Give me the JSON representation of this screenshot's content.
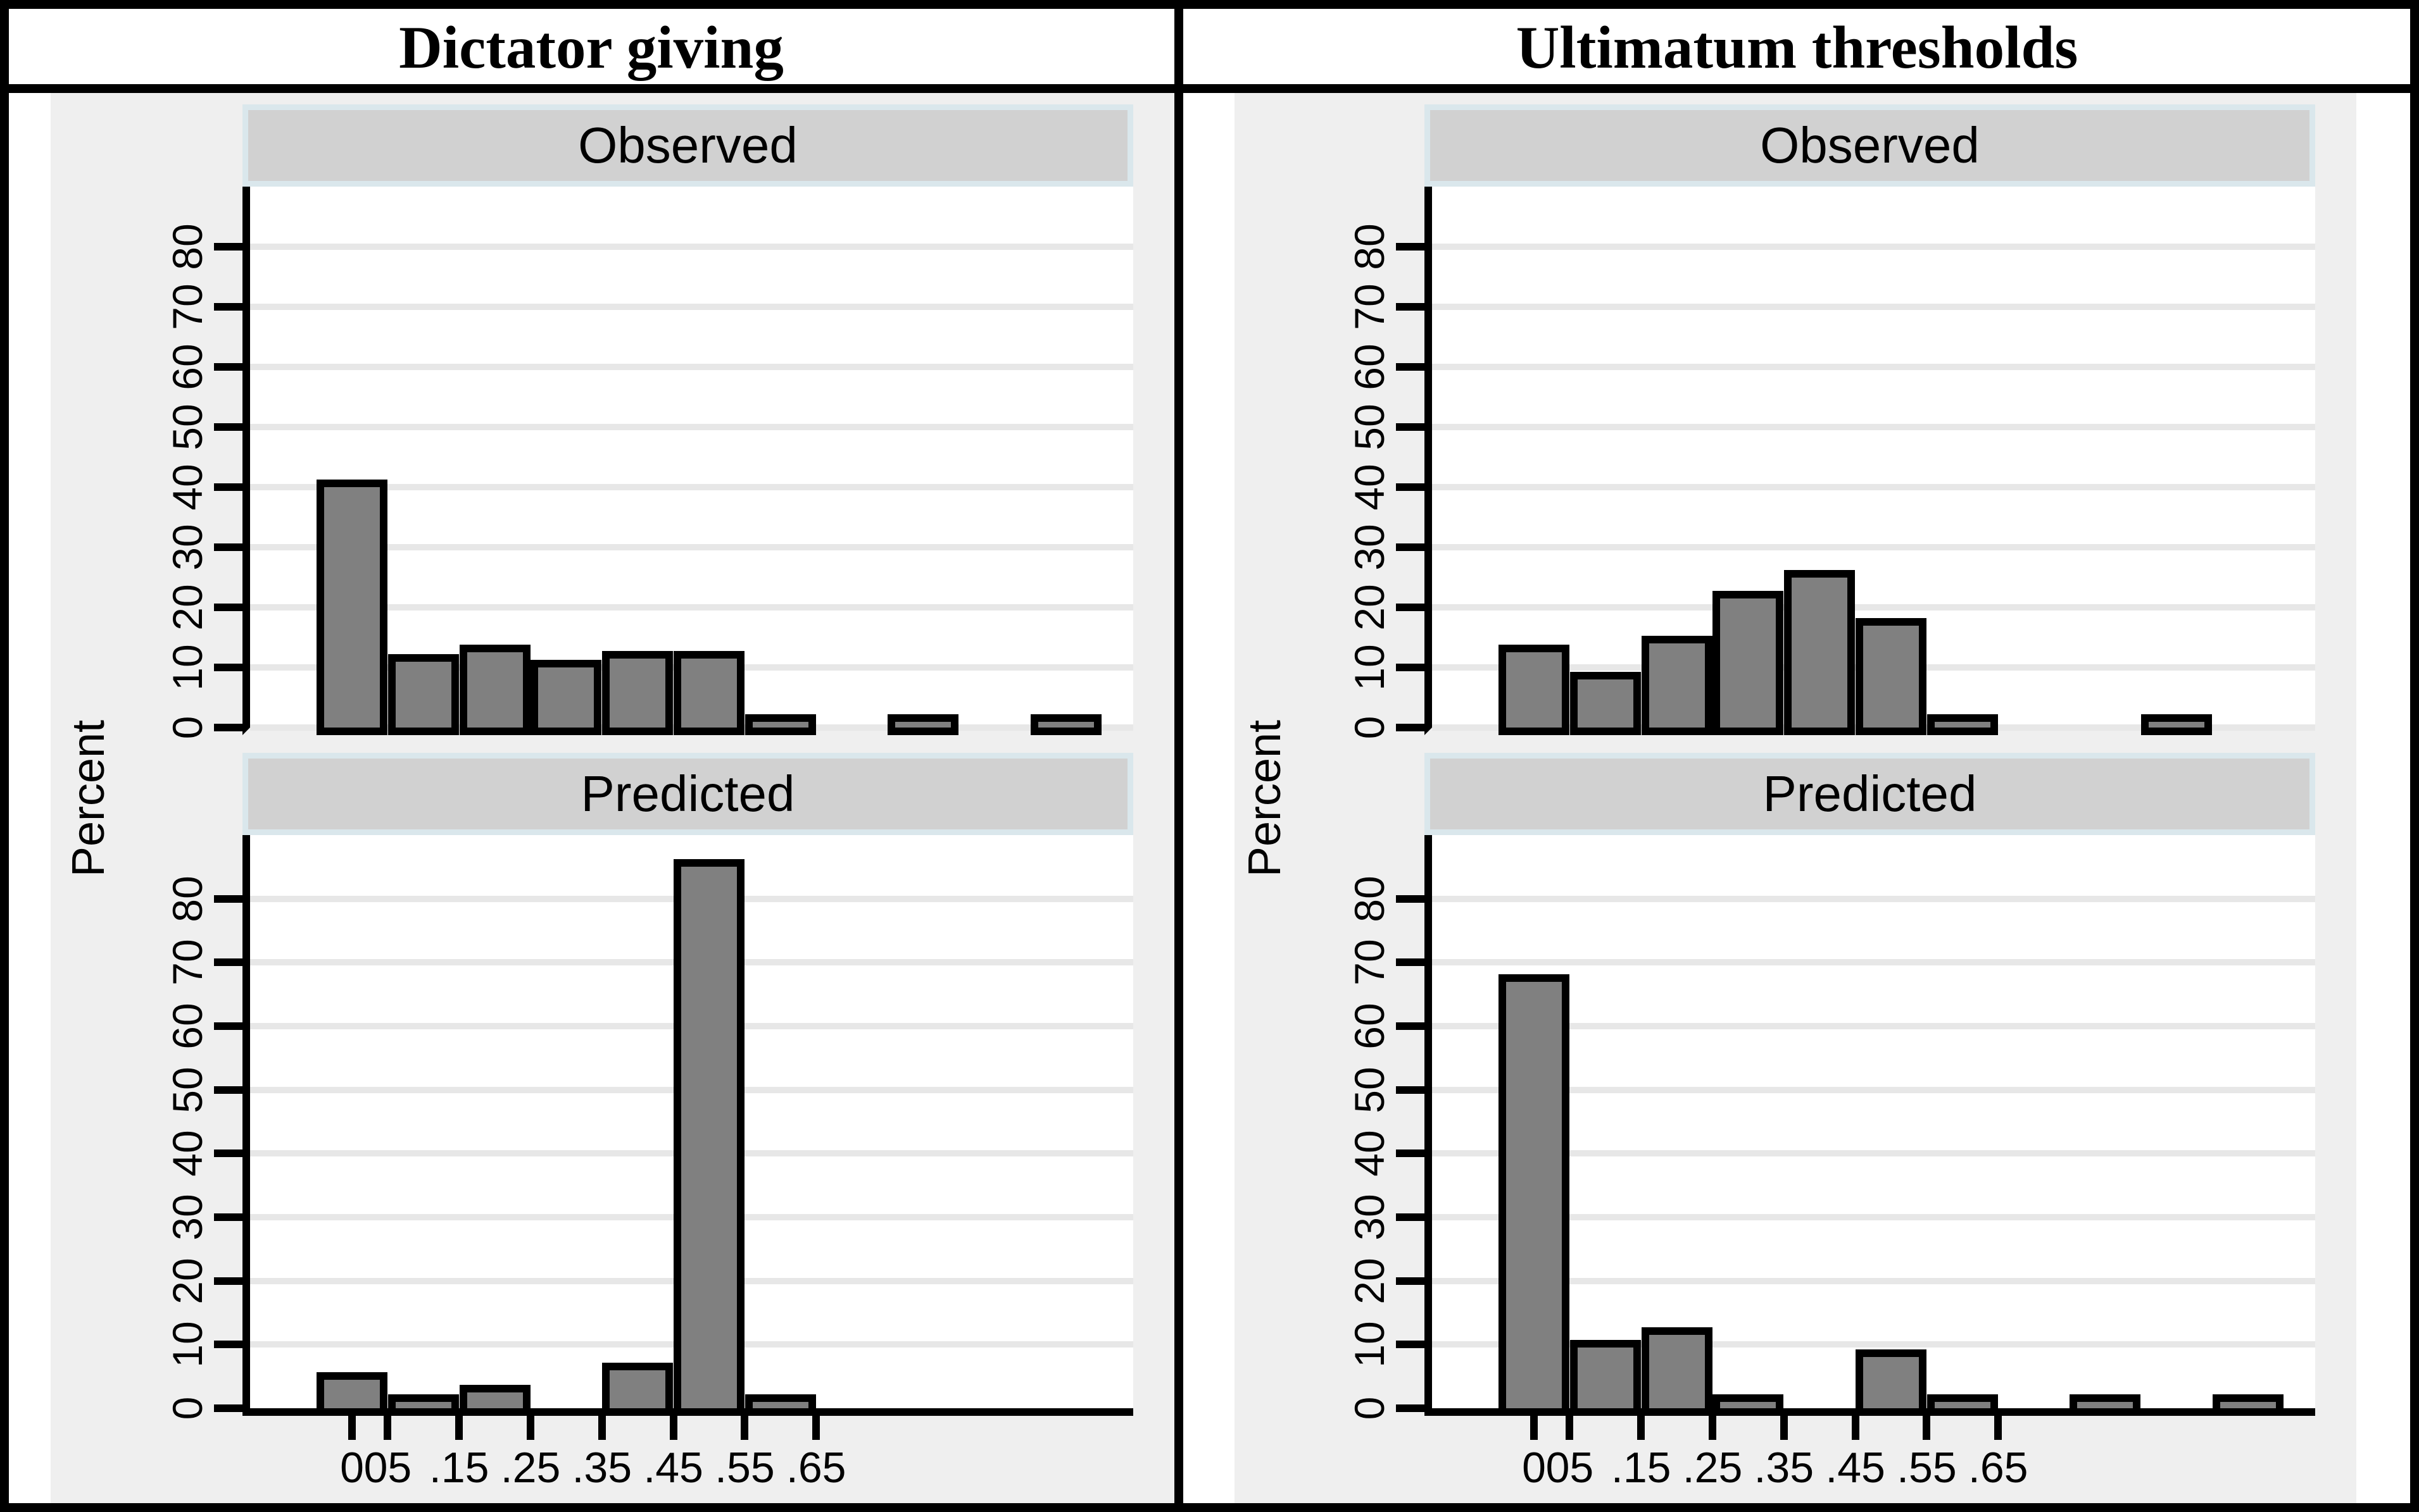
{
  "figure": {
    "column_titles": {
      "left": "Dictator giving",
      "right": "Ultimatum thresholds"
    },
    "y_axis_title": "Percent",
    "panel_labels": {
      "top": "Observed",
      "bottom": "Predicted"
    }
  },
  "axes": {
    "x_tick_labels": [
      "0",
      "05",
      ".15",
      ".25",
      ".35",
      ".45",
      ".55",
      ".65"
    ],
    "x_tick_values": [
      0,
      0.05,
      0.15,
      0.25,
      0.35,
      0.45,
      0.55,
      0.65
    ],
    "x_tick_display_string": "005.15.25.35.45.55.65",
    "y_tick_labels": [
      "0",
      "10",
      "20",
      "30",
      "40",
      "50",
      "60",
      "70",
      "80"
    ],
    "y_tick_values": [
      0,
      10,
      20,
      30,
      40,
      50,
      60,
      70,
      80
    ],
    "y_max": 90
  },
  "colors": {
    "graph_background": "#efefef",
    "plot_background": "#ffffff",
    "gridline": "#e7e7e7",
    "bar_fill": "#808080",
    "bar_border": "#000000",
    "header_fill": "#d1d1d1",
    "header_border": "#dae7ec",
    "frame": "#000000",
    "text": "#000000"
  },
  "chart_data": [
    {
      "type": "bar",
      "title": "Dictator giving - Observed",
      "column": "left",
      "row": "top",
      "panel_label": "Observed",
      "x": [
        0,
        0.1,
        0.2,
        0.3,
        0.4,
        0.5,
        0.6,
        0.8,
        1.0
      ],
      "values": [
        40,
        11,
        12.5,
        10,
        11.5,
        11.5,
        1,
        1,
        1
      ],
      "bin_width": 0.1,
      "ylabel": "Percent",
      "ylim": [
        0,
        90
      ],
      "xlim": [
        -0.14,
        1.09
      ],
      "grid": "horizontal"
    },
    {
      "type": "bar",
      "title": "Dictator giving - Predicted",
      "column": "left",
      "row": "bottom",
      "panel_label": "Predicted",
      "x": [
        0,
        0.1,
        0.2,
        0.4,
        0.5,
        0.6
      ],
      "values": [
        4.5,
        1,
        2.5,
        6,
        85,
        1
      ],
      "bin_width": 0.1,
      "ylabel": "Percent",
      "ylim": [
        0,
        90
      ],
      "xlim": [
        -0.14,
        1.09
      ],
      "grid": "horizontal"
    },
    {
      "type": "bar",
      "title": "Ultimatum thresholds - Observed",
      "column": "right",
      "row": "top",
      "panel_label": "Observed",
      "x": [
        0,
        0.1,
        0.2,
        0.3,
        0.4,
        0.5,
        0.6,
        0.9
      ],
      "values": [
        12.5,
        8,
        14,
        21.5,
        25,
        17,
        1,
        1
      ],
      "bin_width": 0.1,
      "ylabel": "Percent",
      "ylim": [
        0,
        90
      ],
      "xlim": [
        -0.14,
        1.09
      ],
      "grid": "horizontal"
    },
    {
      "type": "bar",
      "title": "Ultimatum thresholds - Predicted",
      "column": "right",
      "row": "bottom",
      "panel_label": "Predicted",
      "x": [
        0,
        0.1,
        0.2,
        0.3,
        0.5,
        0.6,
        0.8,
        1.0
      ],
      "values": [
        67,
        9.5,
        11.5,
        1,
        8,
        1,
        1,
        1
      ],
      "bin_width": 0.1,
      "ylabel": "Percent",
      "ylim": [
        0,
        90
      ],
      "xlim": [
        -0.14,
        1.09
      ],
      "grid": "horizontal"
    }
  ]
}
